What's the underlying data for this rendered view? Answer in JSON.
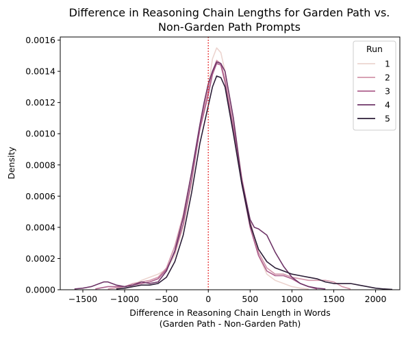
{
  "chart_data": {
    "type": "line",
    "title_lines": [
      "Difference in Reasoning Chain Lengths for Garden Path vs.",
      "Non-Garden Path Prompts"
    ],
    "xlabel_lines": [
      "Difference in Reasoning Chain Length in Words",
      "(Garden Path - Non-Garden Path)"
    ],
    "ylabel": "Density",
    "xlim": [
      -1770,
      2290
    ],
    "ylim": [
      0,
      0.00162
    ],
    "x_ticks": [
      -1500,
      -1000,
      -500,
      0,
      500,
      1000,
      1500,
      2000
    ],
    "y_ticks": [
      0.0,
      0.0002,
      0.0004,
      0.0006,
      0.0008,
      0.001,
      0.0012,
      0.0014,
      0.0016
    ],
    "x_tick_labels": [
      "−1500",
      "−1000",
      "−500",
      "0",
      "500",
      "1000",
      "1500",
      "2000"
    ],
    "y_tick_labels": [
      "0.0000",
      "0.0002",
      "0.0004",
      "0.0006",
      "0.0008",
      "0.0010",
      "0.0012",
      "0.0014",
      "0.0016"
    ],
    "reference_line": {
      "x": 0,
      "color": "#e41a1c",
      "style": "dotted"
    },
    "legend": {
      "title": "Run",
      "position": "upper-right"
    },
    "series": [
      {
        "name": "1",
        "color": "#ecd4cf",
        "points": [
          [
            -1000,
            5e-06
          ],
          [
            -900,
            3e-05
          ],
          [
            -800,
            6e-05
          ],
          [
            -700,
            8e-05
          ],
          [
            -600,
            0.0001
          ],
          [
            -500,
            0.00013
          ],
          [
            -400,
            0.00022
          ],
          [
            -300,
            0.0004
          ],
          [
            -200,
            0.00068
          ],
          [
            -100,
            0.00105
          ],
          [
            0,
            0.0013
          ],
          [
            50,
            0.00148
          ],
          [
            100,
            0.00155
          ],
          [
            150,
            0.00152
          ],
          [
            200,
            0.0014
          ],
          [
            300,
            0.0011
          ],
          [
            400,
            0.00072
          ],
          [
            500,
            0.00043
          ],
          [
            600,
            0.00022
          ],
          [
            700,
            0.0001
          ],
          [
            800,
            6e-05
          ],
          [
            900,
            4e-05
          ],
          [
            1000,
            2e-05
          ],
          [
            1100,
            1e-05
          ],
          [
            1200,
            5e-06
          ]
        ]
      },
      {
        "name": "2",
        "color": "#d294a9",
        "points": [
          [
            -1200,
            5e-06
          ],
          [
            -1000,
            2e-05
          ],
          [
            -900,
            4e-05
          ],
          [
            -800,
            5e-05
          ],
          [
            -700,
            6e-05
          ],
          [
            -600,
            8e-05
          ],
          [
            -500,
            0.00014
          ],
          [
            -400,
            0.00028
          ],
          [
            -300,
            0.00048
          ],
          [
            -200,
            0.00075
          ],
          [
            -100,
            0.00105
          ],
          [
            0,
            0.00128
          ],
          [
            50,
            0.0014
          ],
          [
            100,
            0.00147
          ],
          [
            150,
            0.00145
          ],
          [
            200,
            0.00135
          ],
          [
            300,
            0.00105
          ],
          [
            400,
            0.00072
          ],
          [
            500,
            0.00044
          ],
          [
            600,
            0.00024
          ],
          [
            700,
            0.00014
          ],
          [
            800,
            0.0001
          ],
          [
            900,
            0.0001
          ],
          [
            1000,
            8e-05
          ],
          [
            1100,
            7e-05
          ],
          [
            1200,
            6e-05
          ],
          [
            1300,
            6e-05
          ],
          [
            1400,
            6e-05
          ],
          [
            1500,
            5e-05
          ],
          [
            1600,
            2e-05
          ],
          [
            1700,
            5e-06
          ]
        ]
      },
      {
        "name": "3",
        "color": "#ad5f8c",
        "points": [
          [
            -1350,
            5e-06
          ],
          [
            -1300,
            1e-05
          ],
          [
            -1200,
            2e-05
          ],
          [
            -1100,
            2e-05
          ],
          [
            -1000,
            2e-05
          ],
          [
            -900,
            3e-05
          ],
          [
            -800,
            4e-05
          ],
          [
            -700,
            5e-05
          ],
          [
            -600,
            7e-05
          ],
          [
            -500,
            0.00013
          ],
          [
            -400,
            0.00024
          ],
          [
            -300,
            0.00042
          ],
          [
            -200,
            0.0007
          ],
          [
            -100,
            0.00103
          ],
          [
            0,
            0.00125
          ],
          [
            50,
            0.00138
          ],
          [
            100,
            0.00145
          ],
          [
            150,
            0.00144
          ],
          [
            200,
            0.00133
          ],
          [
            300,
            0.00103
          ],
          [
            400,
            0.00068
          ],
          [
            500,
            0.0004
          ],
          [
            600,
            0.00022
          ],
          [
            700,
            0.00012
          ],
          [
            800,
            9e-05
          ],
          [
            900,
            9e-05
          ],
          [
            1000,
            7e-05
          ],
          [
            1100,
            4e-05
          ],
          [
            1200,
            2e-05
          ],
          [
            1300,
            5e-06
          ]
        ]
      },
      {
        "name": "4",
        "color": "#6e3467",
        "points": [
          [
            -1600,
            5e-06
          ],
          [
            -1500,
            1e-05
          ],
          [
            -1400,
            2e-05
          ],
          [
            -1300,
            4e-05
          ],
          [
            -1250,
            5e-05
          ],
          [
            -1200,
            5e-05
          ],
          [
            -1100,
            3e-05
          ],
          [
            -1000,
            2e-05
          ],
          [
            -900,
            3e-05
          ],
          [
            -800,
            5e-05
          ],
          [
            -700,
            4e-05
          ],
          [
            -600,
            5e-05
          ],
          [
            -500,
            0.00012
          ],
          [
            -400,
            0.00025
          ],
          [
            -300,
            0.00046
          ],
          [
            -200,
            0.00075
          ],
          [
            -100,
            0.00106
          ],
          [
            -50,
            0.0012
          ],
          [
            0,
            0.00132
          ],
          [
            50,
            0.0014
          ],
          [
            100,
            0.00146
          ],
          [
            150,
            0.00145
          ],
          [
            200,
            0.0014
          ],
          [
            300,
            0.0011
          ],
          [
            400,
            0.0007
          ],
          [
            500,
            0.00045
          ],
          [
            550,
            0.0004
          ],
          [
            600,
            0.00039
          ],
          [
            700,
            0.00035
          ],
          [
            800,
            0.00024
          ],
          [
            900,
            0.00015
          ],
          [
            1000,
            8e-05
          ],
          [
            1100,
            4e-05
          ],
          [
            1200,
            2e-05
          ],
          [
            1300,
            1e-05
          ],
          [
            1400,
            5e-06
          ]
        ]
      },
      {
        "name": "5",
        "color": "#2b1d36",
        "points": [
          [
            -1100,
            5e-06
          ],
          [
            -1000,
            1e-05
          ],
          [
            -900,
            2e-05
          ],
          [
            -800,
            3e-05
          ],
          [
            -700,
            3e-05
          ],
          [
            -600,
            4e-05
          ],
          [
            -500,
            8e-05
          ],
          [
            -400,
            0.00018
          ],
          [
            -300,
            0.00035
          ],
          [
            -200,
            0.00062
          ],
          [
            -100,
            0.00094
          ],
          [
            0,
            0.00118
          ],
          [
            50,
            0.0013
          ],
          [
            100,
            0.00137
          ],
          [
            150,
            0.00136
          ],
          [
            200,
            0.0013
          ],
          [
            300,
            0.001
          ],
          [
            400,
            0.00068
          ],
          [
            500,
            0.00042
          ],
          [
            600,
            0.00026
          ],
          [
            700,
            0.00018
          ],
          [
            800,
            0.00014
          ],
          [
            900,
            0.00012
          ],
          [
            1000,
            0.0001
          ],
          [
            1100,
            9e-05
          ],
          [
            1200,
            8e-05
          ],
          [
            1300,
            7e-05
          ],
          [
            1400,
            5e-05
          ],
          [
            1500,
            4e-05
          ],
          [
            1600,
            4e-05
          ],
          [
            1700,
            4e-05
          ],
          [
            1800,
            3e-05
          ],
          [
            1900,
            2e-05
          ],
          [
            2000,
            1e-05
          ],
          [
            2100,
            5e-06
          ],
          [
            2200,
            2e-06
          ]
        ]
      }
    ]
  }
}
